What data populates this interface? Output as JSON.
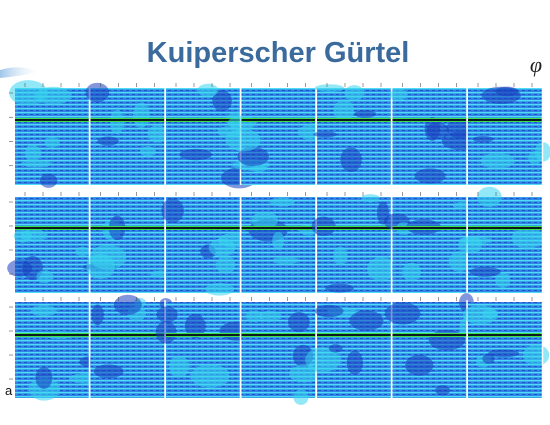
{
  "header": {
    "title": "Kuiperscher Gürtel",
    "symbol": "φ"
  },
  "figure": {
    "label": "a"
  }
}
